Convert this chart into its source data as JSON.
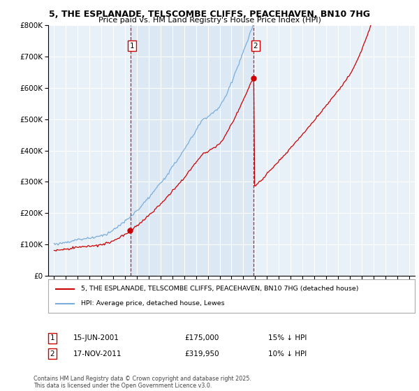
{
  "title": "5, THE ESPLANADE, TELSCOMBE CLIFFS, PEACEHAVEN, BN10 7HG",
  "subtitle": "Price paid vs. HM Land Registry's House Price Index (HPI)",
  "legend_line1": "5, THE ESPLANADE, TELSCOMBE CLIFFS, PEACEHAVEN, BN10 7HG (detached house)",
  "legend_line2": "HPI: Average price, detached house, Lewes",
  "annotation1_label": "1",
  "annotation1_date": "15-JUN-2001",
  "annotation1_price": "£175,000",
  "annotation1_hpi": "15% ↓ HPI",
  "annotation2_label": "2",
  "annotation2_date": "17-NOV-2011",
  "annotation2_price": "£319,950",
  "annotation2_hpi": "10% ↓ HPI",
  "footnote": "Contains HM Land Registry data © Crown copyright and database right 2025.\nThis data is licensed under the Open Government Licence v3.0.",
  "vline1_year": 2001.45,
  "vline2_year": 2011.88,
  "red_color": "#cc0000",
  "blue_color": "#7aaddb",
  "shade_color": "#dce9f5",
  "vline_color": "#cc0000",
  "background_color": "#e8f0f8",
  "ylim": [
    0,
    800000
  ],
  "yticks": [
    0,
    100000,
    200000,
    300000,
    400000,
    500000,
    600000,
    700000,
    800000
  ],
  "xlim_start": 1994.5,
  "xlim_end": 2025.5,
  "purchase1_year": 2001.45,
  "purchase1_price": 175000,
  "purchase2_year": 2011.88,
  "purchase2_price": 319950
}
